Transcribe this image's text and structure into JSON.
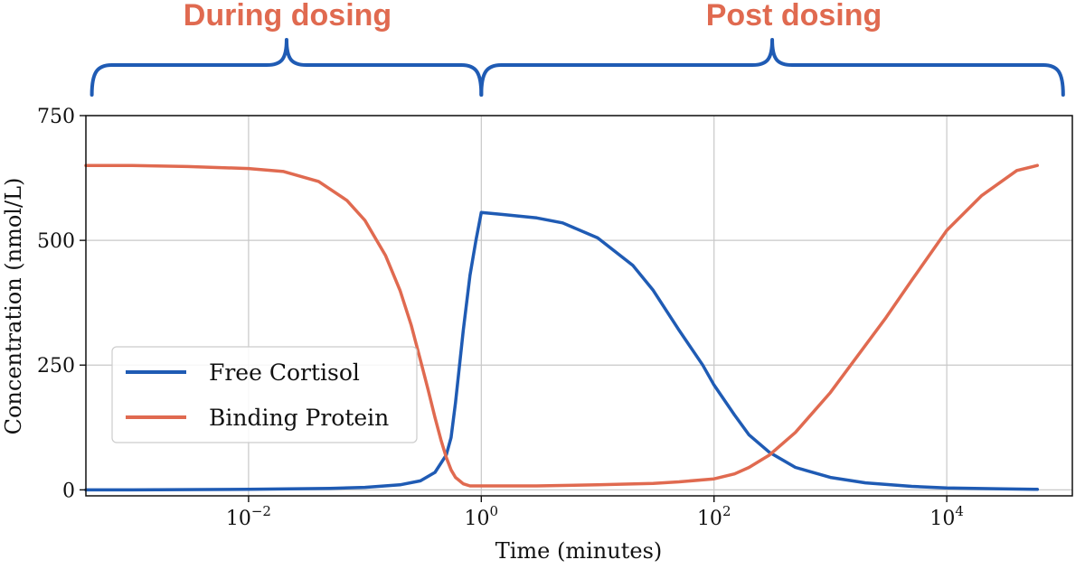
{
  "phases": [
    {
      "label": "During dosing",
      "start_minutes": 0.00045,
      "end_minutes": 1.0
    },
    {
      "label": "Post dosing",
      "start_minutes": 1.0,
      "end_minutes": 100000
    }
  ],
  "colors": {
    "phase_label": "#E06A50",
    "brace": "#1F5BB4",
    "free_cortisol": "#1F5BB4",
    "binding_protein": "#E06A50",
    "grid": "#C8C8C8",
    "axis": "#111111"
  },
  "chart_data": {
    "type": "line",
    "xlabel": "Time (minutes)",
    "ylabel": "Concentration (nmol/L)",
    "x_scale": "log",
    "xlim": [
      0.0004,
      120000
    ],
    "ylim": [
      -12,
      750
    ],
    "x_ticks": [
      {
        "value": 0.01,
        "base": "10",
        "exp": "−2"
      },
      {
        "value": 1,
        "base": "10",
        "exp": "0"
      },
      {
        "value": 100,
        "base": "10",
        "exp": "2"
      },
      {
        "value": 10000,
        "base": "10",
        "exp": "4"
      }
    ],
    "y_ticks": [
      {
        "value": 0,
        "label": "0"
      },
      {
        "value": 250,
        "label": "250"
      },
      {
        "value": 500,
        "label": "500"
      },
      {
        "value": 750,
        "label": "750"
      }
    ],
    "grid": true,
    "legend_position": "lower-left",
    "series": [
      {
        "name": "Free Cortisol",
        "color_key": "free_cortisol",
        "x": [
          0.0004,
          0.001,
          0.01,
          0.05,
          0.1,
          0.2,
          0.3,
          0.4,
          0.5,
          0.55,
          0.6,
          0.7,
          0.8,
          0.9,
          1.0,
          1.5,
          3,
          5,
          10,
          20,
          30,
          50,
          80,
          100,
          150,
          200,
          300,
          500,
          1000,
          2000,
          5000,
          10000,
          30000,
          60000
        ],
        "y": [
          0,
          0,
          1,
          3,
          5,
          10,
          18,
          35,
          70,
          105,
          175,
          320,
          430,
          500,
          556,
          552,
          545,
          535,
          505,
          450,
          400,
          320,
          250,
          210,
          150,
          110,
          75,
          45,
          25,
          14,
          7,
          4,
          2,
          1
        ]
      },
      {
        "name": "Binding Protein",
        "color_key": "binding_protein",
        "x": [
          0.0004,
          0.001,
          0.003,
          0.01,
          0.02,
          0.04,
          0.07,
          0.1,
          0.15,
          0.2,
          0.25,
          0.3,
          0.35,
          0.4,
          0.45,
          0.5,
          0.55,
          0.6,
          0.7,
          0.8,
          1.0,
          3,
          10,
          30,
          50,
          100,
          150,
          200,
          300,
          500,
          1000,
          3000,
          5000,
          10000,
          20000,
          40000,
          60000
        ],
        "y": [
          650,
          650,
          648,
          644,
          638,
          618,
          580,
          540,
          470,
          400,
          330,
          260,
          200,
          145,
          100,
          65,
          40,
          25,
          12,
          8,
          8,
          8,
          10,
          13,
          16,
          22,
          32,
          45,
          70,
          115,
          195,
          345,
          420,
          520,
          590,
          640,
          650
        ]
      }
    ]
  }
}
